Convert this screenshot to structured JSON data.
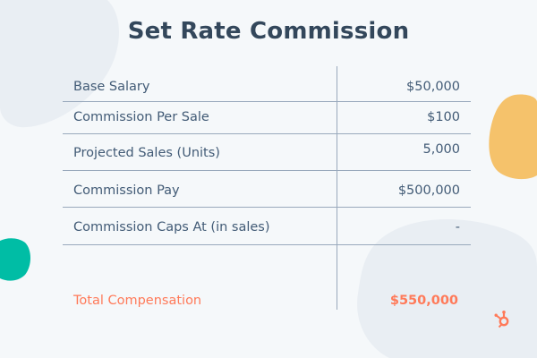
{
  "title": "Set Rate Commission",
  "rows": [
    {
      "label": "Base Salary",
      "value": "$50,000"
    },
    {
      "label": "Commission Per Sale",
      "value": "$100"
    },
    {
      "label": "Projected Sales (Units)",
      "value": "5,000"
    },
    {
      "label": "Commission Pay",
      "value": "$500,000"
    },
    {
      "label": "Commission Caps At (in sales)",
      "value": "-"
    }
  ],
  "total": {
    "label": "Total Compensation",
    "value": "$550,000"
  },
  "colors": {
    "background": "#f5f8fa",
    "text": "#425b76",
    "title": "#33475b",
    "accent": "#ff7a59",
    "orange_blob": "#f5c26b",
    "teal_blob": "#00bda5",
    "grey_blob": "#e5eaef"
  },
  "icons": {
    "logo": "hubspot-sprocket-icon"
  }
}
